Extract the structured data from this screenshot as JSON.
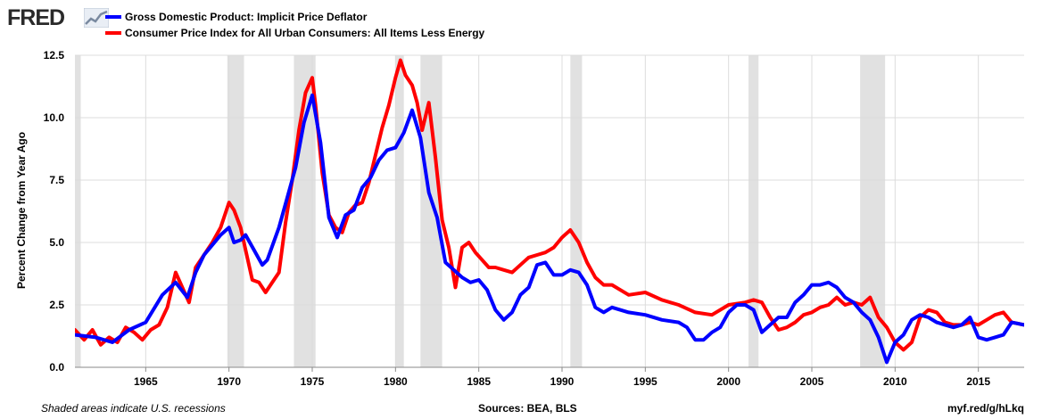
{
  "brand": {
    "logo_text": "FRED"
  },
  "footer": {
    "note": "Shaded areas indicate U.S. recessions",
    "sources": "Sources: BEA, BLS",
    "link": "myf.red/g/hLkq"
  },
  "colors": {
    "gdp": "#0000ff",
    "cpi": "#ff0000",
    "recession": "#e1e1e1",
    "grid": "#dcdcdc"
  },
  "chart_data": {
    "type": "line",
    "ylabel": "Percent Change from Year Ago",
    "xlim": [
      1960.75,
      2017.75
    ],
    "ylim": [
      0,
      12.5
    ],
    "yticks": [
      0,
      2.5,
      5,
      7.5,
      10,
      12.5
    ],
    "ytick_labels": [
      "0.0",
      "2.5",
      "5.0",
      "7.5",
      "10.0",
      "12.5"
    ],
    "xticks": [
      1965,
      1970,
      1975,
      1980,
      1985,
      1990,
      1995,
      2000,
      2005,
      2010,
      2015
    ],
    "xtick_labels": [
      "1965",
      "1970",
      "1975",
      "1980",
      "1985",
      "1990",
      "1995",
      "2000",
      "2005",
      "2010",
      "2015"
    ],
    "grid": true,
    "legend_position": "top-left",
    "recessions": [
      [
        1960.75,
        1961.1
      ],
      [
        1969.9,
        1970.9
      ],
      [
        1973.9,
        1975.2
      ],
      [
        1980.0,
        1980.5
      ],
      [
        1981.5,
        1982.8
      ],
      [
        1990.5,
        1991.2
      ],
      [
        2001.2,
        2001.8
      ],
      [
        2007.9,
        2009.4
      ]
    ],
    "series": [
      {
        "name": "Gross Domestic Product: Implicit Price Deflator",
        "color": "#0000ff",
        "x": [
          1960.75,
          1962,
          1963,
          1964,
          1965,
          1966,
          1966.8,
          1967.5,
          1968,
          1968.5,
          1969,
          1969.5,
          1970,
          1970.3,
          1970.7,
          1971,
          1971.5,
          1972,
          1972.3,
          1973,
          1973.5,
          1974,
          1974.5,
          1975,
          1975.5,
          1976,
          1976.5,
          1977,
          1977.5,
          1978,
          1978.5,
          1979,
          1979.5,
          1980,
          1980.5,
          1981,
          1981.5,
          1982,
          1982.5,
          1983,
          1983.5,
          1984,
          1984.5,
          1985,
          1985.5,
          1986,
          1986.5,
          1987,
          1987.5,
          1988,
          1988.5,
          1989,
          1989.5,
          1990,
          1990.5,
          1991,
          1991.5,
          1992,
          1992.5,
          1993,
          1994,
          1995,
          1996,
          1997,
          1997.5,
          1998,
          1998.5,
          1999,
          1999.5,
          2000,
          2000.5,
          2001,
          2001.5,
          2002,
          2002.5,
          2003,
          2003.5,
          2004,
          2004.5,
          2005,
          2005.5,
          2006,
          2006.5,
          2007,
          2007.5,
          2008,
          2008.5,
          2009,
          2009.5,
          2010,
          2010.5,
          2011,
          2011.5,
          2012,
          2012.5,
          2013,
          2013.5,
          2014,
          2014.5,
          2015,
          2015.5,
          2016,
          2016.5,
          2017,
          2017.75
        ],
        "y": [
          1.3,
          1.2,
          1.0,
          1.5,
          1.8,
          2.9,
          3.4,
          2.8,
          3.8,
          4.5,
          4.9,
          5.3,
          5.6,
          5.0,
          5.1,
          5.3,
          4.7,
          4.1,
          4.3,
          5.6,
          6.8,
          8.0,
          9.8,
          10.9,
          9.0,
          6.0,
          5.2,
          6.1,
          6.3,
          7.2,
          7.6,
          8.3,
          8.7,
          8.8,
          9.4,
          10.3,
          9.2,
          7.0,
          6.0,
          4.2,
          3.9,
          3.6,
          3.4,
          3.5,
          3.1,
          2.3,
          1.9,
          2.2,
          2.9,
          3.2,
          4.1,
          4.2,
          3.7,
          3.7,
          3.9,
          3.8,
          3.3,
          2.4,
          2.2,
          2.4,
          2.2,
          2.1,
          1.9,
          1.8,
          1.6,
          1.1,
          1.1,
          1.4,
          1.6,
          2.2,
          2.5,
          2.5,
          2.3,
          1.4,
          1.7,
          2.0,
          2.0,
          2.6,
          2.9,
          3.3,
          3.3,
          3.4,
          3.2,
          2.8,
          2.6,
          2.2,
          1.9,
          1.2,
          0.2,
          1.0,
          1.3,
          1.9,
          2.1,
          2.0,
          1.8,
          1.7,
          1.6,
          1.7,
          2.0,
          1.2,
          1.1,
          1.2,
          1.3,
          1.8,
          1.7
        ]
      },
      {
        "name": "Consumer Price Index for All Urban Consumers: All Items Less Energy",
        "color": "#ff0000",
        "x": [
          1960.75,
          1961.3,
          1961.8,
          1962.3,
          1962.8,
          1963.3,
          1963.8,
          1964.3,
          1964.8,
          1965.3,
          1965.8,
          1966.3,
          1966.8,
          1967.2,
          1967.6,
          1968,
          1968.5,
          1969,
          1969.5,
          1970,
          1970.3,
          1970.7,
          1971,
          1971.4,
          1971.8,
          1972.2,
          1972.6,
          1973,
          1973.4,
          1973.8,
          1974.2,
          1974.6,
          1975,
          1975.2,
          1975.6,
          1976,
          1976.4,
          1976.8,
          1977.2,
          1977.6,
          1978,
          1978.4,
          1978.8,
          1979.2,
          1979.6,
          1980,
          1980.3,
          1980.6,
          1981,
          1981.3,
          1981.6,
          1982,
          1982.4,
          1982.8,
          1983.2,
          1983.6,
          1984,
          1984.4,
          1984.8,
          1985.2,
          1985.6,
          1986,
          1986.5,
          1987,
          1987.5,
          1988,
          1988.5,
          1989,
          1989.5,
          1990,
          1990.5,
          1991,
          1991.5,
          1992,
          1992.5,
          1993,
          1993.5,
          1994,
          1995,
          1996,
          1997,
          1998,
          1999,
          2000,
          2001,
          2001.5,
          2002,
          2002.5,
          2003,
          2003.5,
          2004,
          2004.5,
          2005,
          2005.5,
          2006,
          2006.5,
          2007,
          2007.5,
          2008,
          2008.5,
          2009,
          2009.5,
          2010,
          2010.5,
          2011,
          2011.5,
          2012,
          2012.5,
          2013,
          2013.5,
          2014,
          2014.5,
          2015,
          2015.5,
          2016,
          2016.5,
          2017,
          2017.75
        ],
        "y": [
          1.5,
          1.1,
          1.5,
          0.9,
          1.2,
          1.0,
          1.6,
          1.4,
          1.1,
          1.5,
          1.7,
          2.4,
          3.8,
          3.2,
          2.6,
          4.0,
          4.5,
          5.0,
          5.6,
          6.6,
          6.3,
          5.6,
          4.7,
          3.5,
          3.4,
          3.0,
          3.4,
          3.8,
          5.8,
          7.5,
          9.5,
          11.0,
          11.6,
          10.5,
          7.8,
          6.1,
          5.6,
          5.4,
          6.2,
          6.5,
          6.6,
          7.4,
          8.5,
          9.6,
          10.5,
          11.6,
          12.3,
          11.7,
          11.3,
          10.6,
          9.5,
          10.6,
          8.4,
          5.9,
          4.8,
          3.2,
          4.8,
          5.0,
          4.6,
          4.3,
          4.0,
          4.0,
          3.9,
          3.8,
          4.1,
          4.4,
          4.5,
          4.6,
          4.8,
          5.2,
          5.5,
          5.0,
          4.2,
          3.6,
          3.3,
          3.3,
          3.1,
          2.9,
          3.0,
          2.7,
          2.5,
          2.2,
          2.1,
          2.5,
          2.6,
          2.7,
          2.6,
          2.0,
          1.5,
          1.6,
          1.8,
          2.1,
          2.2,
          2.4,
          2.5,
          2.8,
          2.5,
          2.6,
          2.5,
          2.8,
          2.0,
          1.6,
          1.0,
          0.7,
          1.0,
          2.0,
          2.3,
          2.2,
          1.8,
          1.7,
          1.7,
          1.8,
          1.7,
          1.9,
          2.1,
          2.2,
          1.8,
          1.7
        ]
      }
    ]
  }
}
